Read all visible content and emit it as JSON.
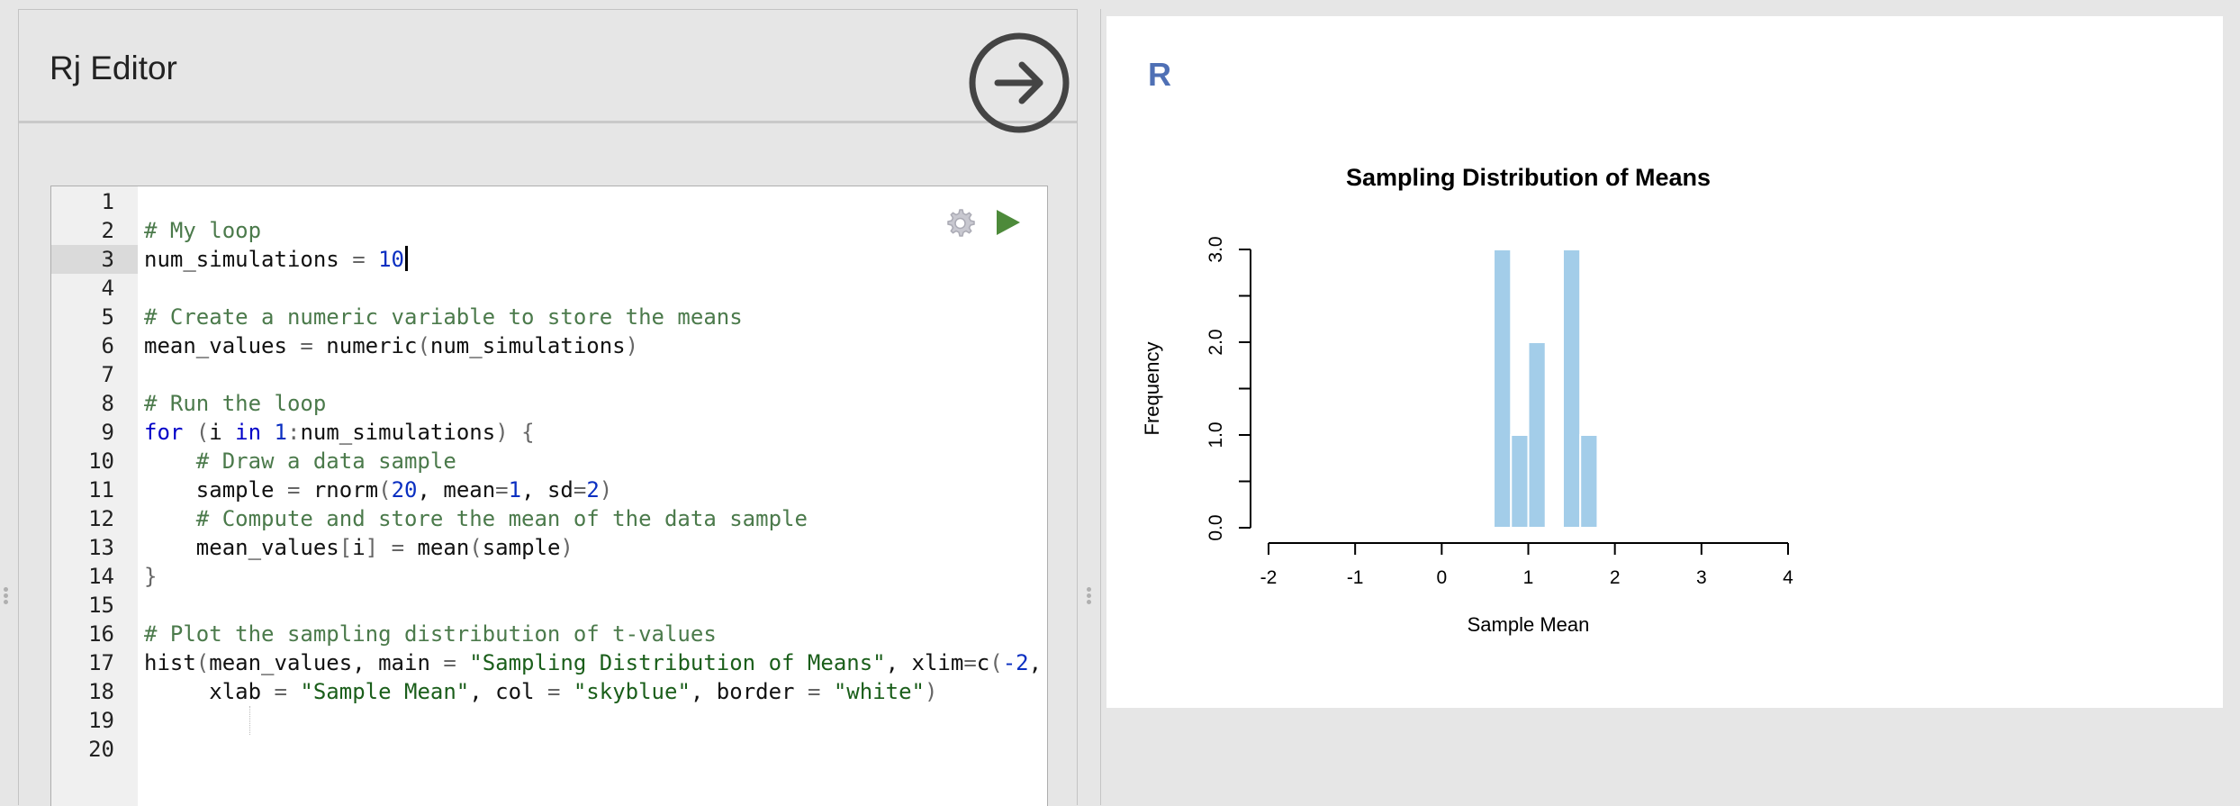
{
  "editor": {
    "title": "Rj Editor",
    "run_icon": "arrow-right-circle-icon",
    "settings_icon": "gear-icon",
    "play_icon": "play-icon",
    "active_line": 3,
    "lines": [
      {
        "num": "1",
        "html": ""
      },
      {
        "num": "2",
        "html": "<span class=\"cm\"># My loop</span>"
      },
      {
        "num": "3",
        "html": "num_simulations <span class=\"op\">=</span> <span class=\"num\">10</span><span class=\"cursor\"></span>"
      },
      {
        "num": "4",
        "html": ""
      },
      {
        "num": "5",
        "html": "<span class=\"cm\"># Create a numeric variable to store the means</span>"
      },
      {
        "num": "6",
        "html": "mean_values <span class=\"op\">=</span> numeric<span class=\"op\">(</span>num_simulations<span class=\"op\">)</span>"
      },
      {
        "num": "7",
        "html": ""
      },
      {
        "num": "8",
        "html": "<span class=\"cm\"># Run the loop</span>"
      },
      {
        "num": "9",
        "html": "<span class=\"kw\">for</span> <span class=\"op\">(</span>i <span class=\"kw\">in</span> <span class=\"num\">1</span><span class=\"op\">:</span>num_simulations<span class=\"op\">)</span> <span class=\"op\">{</span>"
      },
      {
        "num": "10",
        "html": "    <span class=\"cm\"># Draw a data sample</span>"
      },
      {
        "num": "11",
        "html": "    sample <span class=\"op\">=</span> rnorm<span class=\"op\">(</span><span class=\"num\">20</span>, mean<span class=\"op\">=</span><span class=\"num\">1</span>, sd<span class=\"op\">=</span><span class=\"num\">2</span><span class=\"op\">)</span>"
      },
      {
        "num": "12",
        "html": "    <span class=\"cm\"># Compute and store the mean of the data sample</span>"
      },
      {
        "num": "13",
        "html": "    mean_values<span class=\"op\">[</span>i<span class=\"op\">]</span> <span class=\"op\">=</span> mean<span class=\"op\">(</span>sample<span class=\"op\">)</span>"
      },
      {
        "num": "14",
        "html": "<span class=\"op\">}</span>"
      },
      {
        "num": "15",
        "html": ""
      },
      {
        "num": "16",
        "html": "<span class=\"cm\"># Plot the sampling distribution of t-values</span>"
      },
      {
        "num": "17",
        "html": "hist<span class=\"op\">(</span>mean_values, main <span class=\"op\">=</span> <span class=\"str\">\"Sampling Distribution of Means\"</span>, xlim<span class=\"op\">=</span>c<span class=\"op\">(</span><span class=\"num\">-2</span>,"
      },
      {
        "num": "18",
        "html": "     xlab <span class=\"op\">=</span> <span class=\"str\">\"Sample Mean\"</span>, col <span class=\"op\">=</span> <span class=\"str\">\"skyblue\"</span>, border <span class=\"op\">=</span> <span class=\"str\">\"white\"</span><span class=\"op\">)</span>"
      },
      {
        "num": "19",
        "html": ""
      },
      {
        "num": "20",
        "html": ""
      }
    ]
  },
  "output": {
    "logo": "R"
  },
  "chart_data": {
    "type": "bar",
    "title": "Sampling Distribution of Means",
    "xlabel": "Sample Mean",
    "ylabel": "Frequency",
    "bar_color": "#a3cde9",
    "xlim": [
      -2,
      4
    ],
    "ylim": [
      0,
      3
    ],
    "xticks": [
      "-2",
      "-1",
      "0",
      "1",
      "2",
      "3",
      "4"
    ],
    "yticks": [
      "0.0",
      "1.0",
      "2.0",
      "3.0"
    ],
    "bins": [
      {
        "start": 0.6,
        "end": 0.8,
        "count": 3
      },
      {
        "start": 0.8,
        "end": 1.0,
        "count": 1
      },
      {
        "start": 1.0,
        "end": 1.2,
        "count": 2
      },
      {
        "start": 1.2,
        "end": 1.4,
        "count": 0
      },
      {
        "start": 1.4,
        "end": 1.6,
        "count": 3
      },
      {
        "start": 1.6,
        "end": 1.8,
        "count": 1
      }
    ]
  }
}
